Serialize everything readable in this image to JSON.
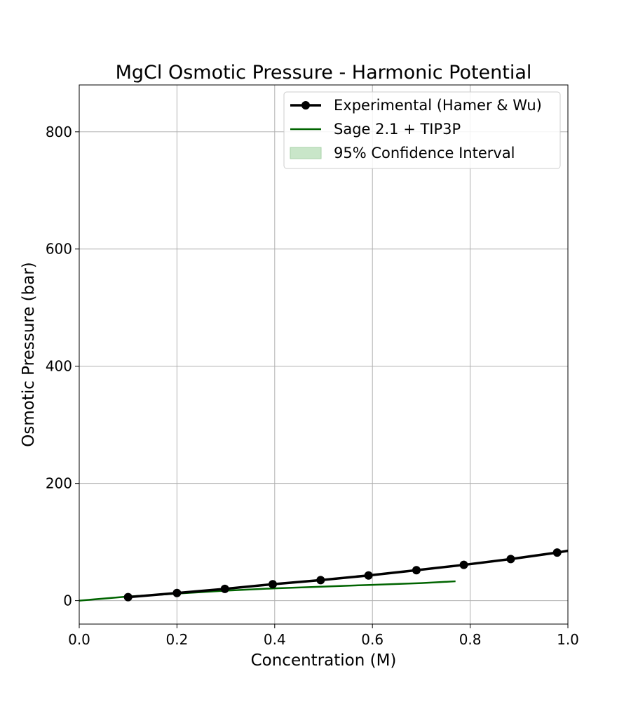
{
  "chart_data": {
    "type": "line",
    "title": "MgCl Osmotic Pressure - Harmonic Potential",
    "xlabel": "Concentration (M)",
    "ylabel": "Osmotic Pressure (bar)",
    "xlim": [
      0.0,
      1.0
    ],
    "ylim": [
      -40,
      880
    ],
    "xticks": [
      0.0,
      0.2,
      0.4,
      0.6,
      0.8,
      1.0
    ],
    "xtick_labels": [
      "0.0",
      "0.2",
      "0.4",
      "0.6",
      "0.8",
      "1.0"
    ],
    "yticks": [
      0,
      200,
      400,
      600,
      800
    ],
    "ytick_labels": [
      "0",
      "200",
      "400",
      "600",
      "800"
    ],
    "grid": true,
    "legend_position": "top-right",
    "series": [
      {
        "name": "Experimental (Hamer & Wu)",
        "color": "#000000",
        "marker": "circle",
        "x": [
          0.1,
          0.2,
          0.298,
          0.396,
          0.494,
          0.592,
          0.69,
          0.787,
          0.883,
          0.978,
          1.0
        ],
        "y": [
          6,
          13,
          20,
          28,
          35,
          43,
          52,
          61,
          71,
          82,
          85
        ],
        "marker_count": 10
      },
      {
        "name": "Sage 2.1 + TIP3P",
        "color": "#006400",
        "marker": "none",
        "x": [
          0.0,
          0.1,
          0.2,
          0.3,
          0.4,
          0.5,
          0.6,
          0.7,
          0.77
        ],
        "y": [
          0,
          7,
          12,
          17,
          21,
          24,
          27,
          30,
          33
        ]
      },
      {
        "name": "95% Confidence Interval",
        "color": "#c9e6c9",
        "type": "area"
      }
    ]
  }
}
